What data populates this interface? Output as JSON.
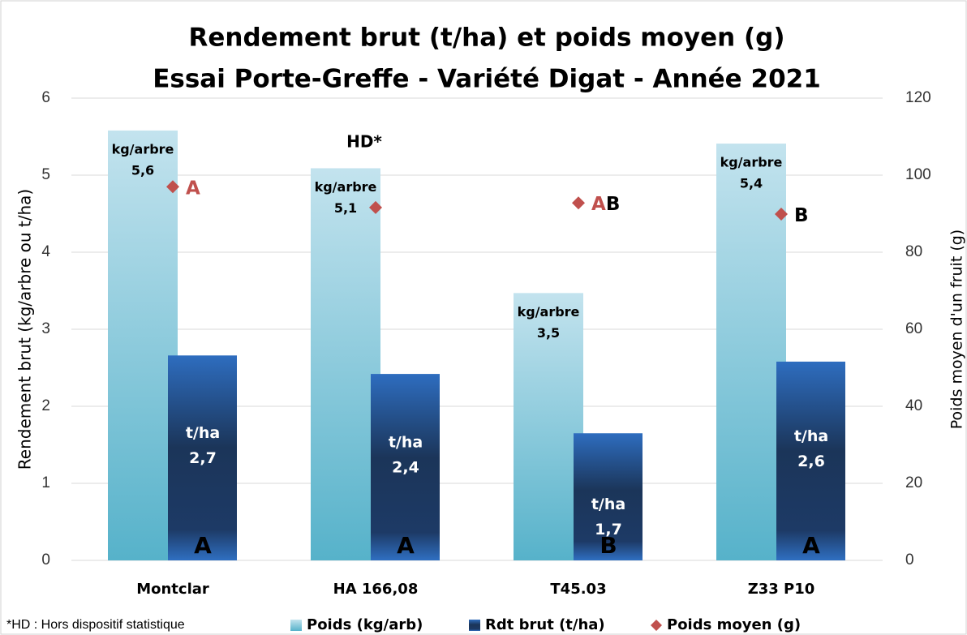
{
  "chart_data": {
    "type": "bar_combo",
    "title": "Rendement brut (t/ha) et poids moyen (g)",
    "subtitle": "Essai Porte-Greffe - Variété Digat - Année 2021",
    "y_label": "Rendement  brut (kg/arbre ou t/ha)",
    "y2_label": "Poids moyen d'un fruit (g)",
    "categories": [
      "Montclar",
      "HA 166,08",
      "T45.03",
      "Z33 P10"
    ],
    "ylim": [
      0,
      6
    ],
    "yticks": [
      0,
      1,
      2,
      3,
      4,
      5,
      6
    ],
    "y2lim": [
      0,
      120
    ],
    "y2ticks": [
      0,
      20,
      40,
      60,
      80,
      100,
      120
    ],
    "grid": true,
    "series": [
      {
        "name": "Poids (kg/arb)",
        "color": "#7fc6da",
        "unit_label": "kg/arbre",
        "values": [
          5.58,
          5.09,
          3.47,
          5.41
        ],
        "value_labels": [
          "5,6",
          "5,1",
          "3,5",
          "5,4"
        ]
      },
      {
        "name": "Rdt brut (t/ha)",
        "color": "#1f3864",
        "unit_label": "t/ha",
        "values": [
          2.66,
          2.42,
          1.65,
          2.58
        ],
        "value_labels": [
          "2,7",
          "2,4",
          "1,7",
          "2,6"
        ],
        "letters": [
          "A",
          "A",
          "B",
          "A"
        ],
        "letter_colors": [
          "#e31c1c",
          "#e31c1c",
          "#f2c9d3",
          "#e31c1c"
        ]
      },
      {
        "name": "Poids moyen (g)",
        "color": "#c0504d",
        "axis": "y2",
        "marker": "diamond",
        "values": [
          97,
          91.6,
          92.8,
          89.9
        ],
        "letters": [
          [
            "A"
          ],
          null,
          [
            "A",
            "B"
          ],
          [
            "B"
          ]
        ],
        "letter_colors": {
          "A": "#c0504d",
          "B": "#000000"
        }
      }
    ],
    "annotations": [
      "HD*"
    ],
    "footnote": "*HD : Hors dispositif statistique"
  }
}
